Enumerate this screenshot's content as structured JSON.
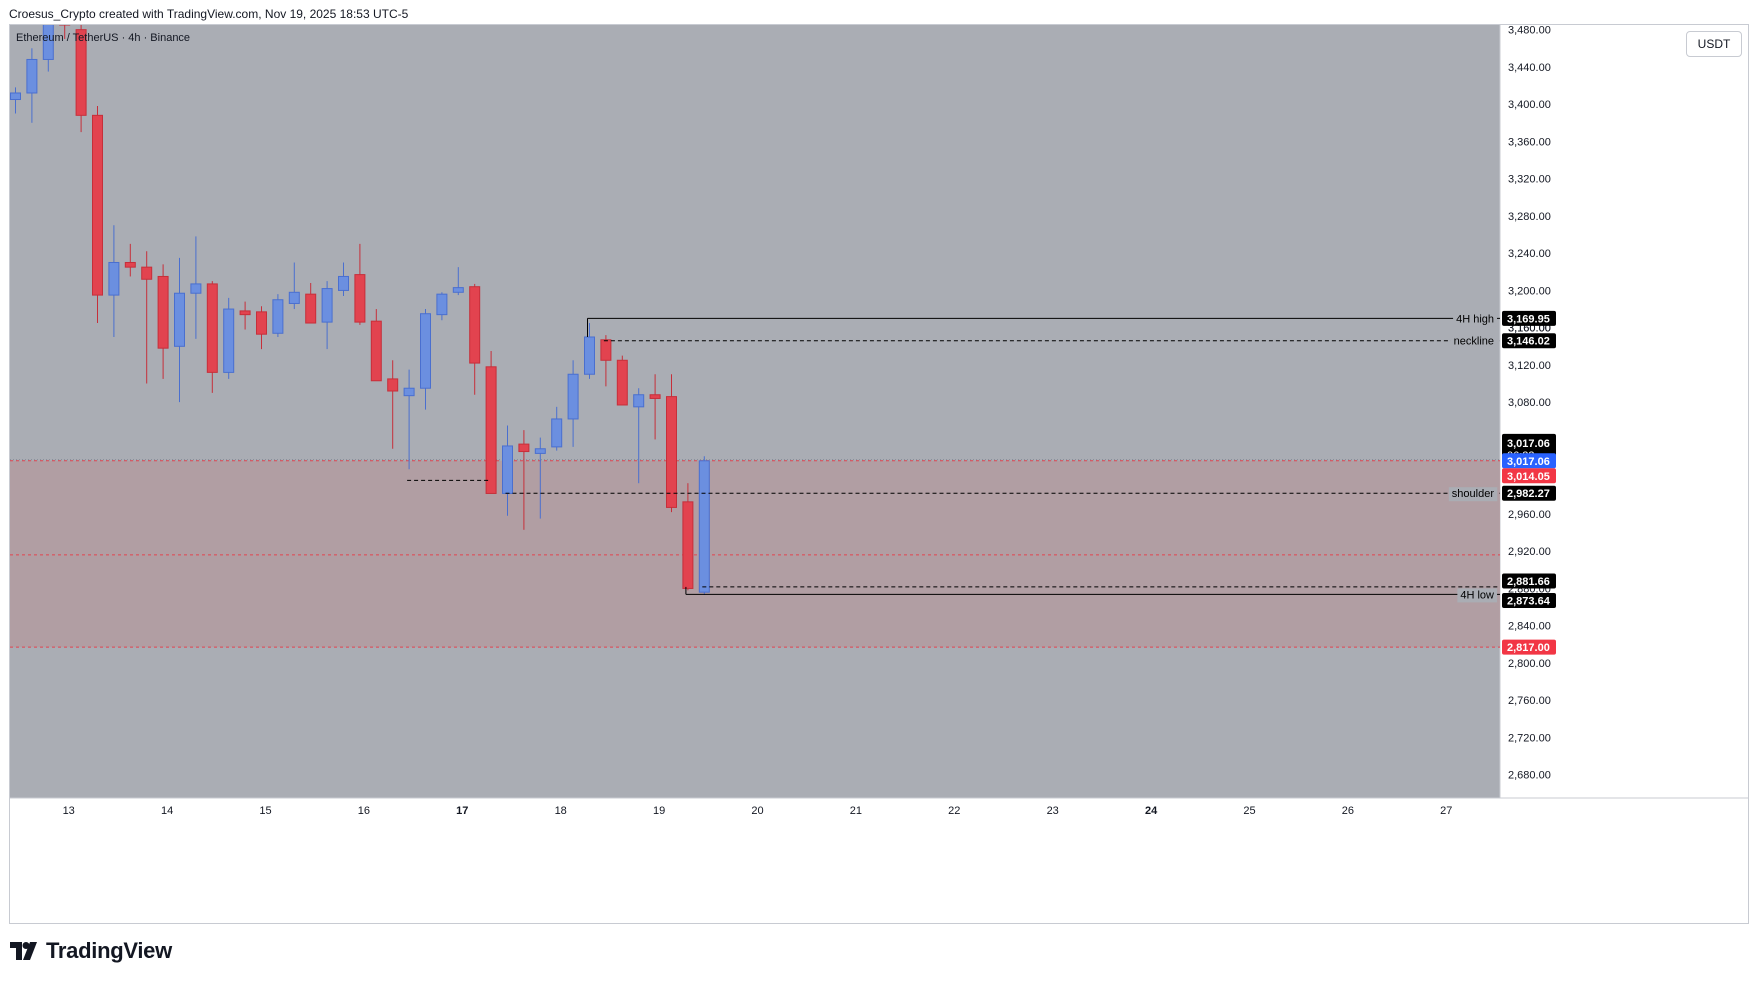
{
  "header": {
    "attribution": "Croesus_Crypto created with TradingView.com, Nov 19, 2025 18:53 UTC-5"
  },
  "symbol_legend": "Ethereum / TetherUS · 4h · Binance",
  "currency_button": "USDT",
  "brand": {
    "name": "TradingView"
  },
  "colors": {
    "background": "#ffffff",
    "plot_background": "#aaadb4",
    "zone_fill": "#b39ba0",
    "bull": "#6b8fe0",
    "bull_border": "#4a6fcf",
    "bear": "#e2434f",
    "bear_border": "#c62f3a",
    "price_blue": "#2962ff",
    "price_red": "#f23645",
    "label_black": "#000000"
  },
  "chart_data": {
    "type": "candlestick",
    "timeframe": "4h",
    "ylim": [
      2655,
      3485
    ],
    "y_ticks": [
      "2,680.00",
      "2,720.00",
      "2,760.00",
      "2,800.00",
      "2,840.00",
      "2,880.00",
      "2,920.00",
      "2,960.00",
      "3,000.00",
      "3,040.00",
      "3,080.00",
      "3,120.00",
      "3,160.00",
      "3,200.00",
      "3,240.00",
      "3,280.00",
      "3,320.00",
      "3,360.00",
      "3,400.00",
      "3,440.00"
    ],
    "x_ticks": [
      {
        "label": "13",
        "i": 3,
        "bold": false
      },
      {
        "label": "14",
        "i": 9,
        "bold": false
      },
      {
        "label": "15",
        "i": 15,
        "bold": false
      },
      {
        "label": "16",
        "i": 21,
        "bold": false
      },
      {
        "label": "17",
        "i": 27,
        "bold": true
      },
      {
        "label": "18",
        "i": 33,
        "bold": false
      },
      {
        "label": "19",
        "i": 39,
        "bold": false
      },
      {
        "label": "20",
        "i": 45,
        "bold": false
      },
      {
        "label": "21",
        "i": 51,
        "bold": false
      },
      {
        "label": "22",
        "i": 57,
        "bold": false
      },
      {
        "label": "23",
        "i": 63,
        "bold": false
      },
      {
        "label": "24",
        "i": 69,
        "bold": true
      },
      {
        "label": "25",
        "i": 75,
        "bold": false
      },
      {
        "label": "26",
        "i": 81,
        "bold": false
      },
      {
        "label": "27",
        "i": 87,
        "bold": false
      }
    ],
    "candles": [
      {
        "o": 3405,
        "h": 3418,
        "l": 3390,
        "c": 3412
      },
      {
        "o": 3412,
        "h": 3460,
        "l": 3380,
        "c": 3448
      },
      {
        "o": 3448,
        "h": 3500,
        "l": 3435,
        "c": 3490
      },
      {
        "o": 3495,
        "h": 3520,
        "l": 3470,
        "c": 3485
      },
      {
        "o": 3480,
        "h": 3490,
        "l": 3370,
        "c": 3388
      },
      {
        "o": 3388,
        "h": 3398,
        "l": 3165,
        "c": 3195
      },
      {
        "o": 3195,
        "h": 3270,
        "l": 3150,
        "c": 3230
      },
      {
        "o": 3230,
        "h": 3250,
        "l": 3215,
        "c": 3225
      },
      {
        "o": 3225,
        "h": 3242,
        "l": 3100,
        "c": 3212
      },
      {
        "o": 3215,
        "h": 3228,
        "l": 3105,
        "c": 3138
      },
      {
        "o": 3140,
        "h": 3235,
        "l": 3080,
        "c": 3197
      },
      {
        "o": 3197,
        "h": 3258,
        "l": 3148,
        "c": 3207
      },
      {
        "o": 3207,
        "h": 3210,
        "l": 3090,
        "c": 3112
      },
      {
        "o": 3112,
        "h": 3192,
        "l": 3105,
        "c": 3180
      },
      {
        "o": 3178,
        "h": 3188,
        "l": 3158,
        "c": 3174
      },
      {
        "o": 3177,
        "h": 3183,
        "l": 3137,
        "c": 3153
      },
      {
        "o": 3154,
        "h": 3196,
        "l": 3150,
        "c": 3190
      },
      {
        "o": 3186,
        "h": 3230,
        "l": 3180,
        "c": 3198
      },
      {
        "o": 3196,
        "h": 3208,
        "l": 3168,
        "c": 3165
      },
      {
        "o": 3166,
        "h": 3210,
        "l": 3137,
        "c": 3202
      },
      {
        "o": 3200,
        "h": 3230,
        "l": 3194,
        "c": 3215
      },
      {
        "o": 3217,
        "h": 3250,
        "l": 3163,
        "c": 3166
      },
      {
        "o": 3167,
        "h": 3180,
        "l": 3105,
        "c": 3103
      },
      {
        "o": 3105,
        "h": 3125,
        "l": 3030,
        "c": 3092
      },
      {
        "o": 3087,
        "h": 3115,
        "l": 3008,
        "c": 3095
      },
      {
        "o": 3095,
        "h": 3180,
        "l": 3072,
        "c": 3175
      },
      {
        "o": 3174,
        "h": 3198,
        "l": 3168,
        "c": 3196
      },
      {
        "o": 3198,
        "h": 3225,
        "l": 3195,
        "c": 3203
      },
      {
        "o": 3204,
        "h": 3207,
        "l": 3088,
        "c": 3122
      },
      {
        "o": 3118,
        "h": 3135,
        "l": 2985,
        "c": 2982
      },
      {
        "o": 2982,
        "h": 3055,
        "l": 2958,
        "c": 3033
      },
      {
        "o": 3035,
        "h": 3050,
        "l": 2943,
        "c": 3027
      },
      {
        "o": 3025,
        "h": 3042,
        "l": 2955,
        "c": 3030
      },
      {
        "o": 3032,
        "h": 3075,
        "l": 3028,
        "c": 3062
      },
      {
        "o": 3062,
        "h": 3125,
        "l": 3032,
        "c": 3110
      },
      {
        "o": 3110,
        "h": 3165,
        "l": 3105,
        "c": 3150
      },
      {
        "o": 3147,
        "h": 3152,
        "l": 3097,
        "c": 3125
      },
      {
        "o": 3125,
        "h": 3130,
        "l": 3080,
        "c": 3077
      },
      {
        "o": 3075,
        "h": 3095,
        "l": 2993,
        "c": 3088
      },
      {
        "o": 3088,
        "h": 3110,
        "l": 3040,
        "c": 3084
      },
      {
        "o": 3086,
        "h": 3110,
        "l": 2962,
        "c": 2967
      },
      {
        "o": 2973,
        "h": 2993,
        "l": 2878,
        "c": 2880
      },
      {
        "o": 2876,
        "h": 3022,
        "l": 2873,
        "c": 3017.06
      }
    ],
    "markers": [
      {
        "label": "4H high",
        "value": 3169.95,
        "price_label": "3,169.95",
        "style": "solid",
        "from_i": 35
      },
      {
        "label": "neckline",
        "value": 3146.02,
        "price_label": "3,146.02",
        "style": "dashed",
        "from_i": 36
      },
      {
        "label": "shoulder",
        "value": 2982.27,
        "price_label": "2,982.27",
        "style": "dashed",
        "from_i": 30
      },
      {
        "label": "",
        "value": 2881.66,
        "price_label": "2,881.66",
        "style": "dashed",
        "from_i": 42
      },
      {
        "label": "4H low",
        "value": 2873.64,
        "price_label": "2,873.64",
        "style": "solid",
        "from_i": 41
      },
      {
        "label": "",
        "value": 2996,
        "price_label": "",
        "style": "dashed",
        "from_i": 24,
        "to_i": 29
      }
    ],
    "zone": {
      "top": 3017.06,
      "bottom": 2817.0,
      "mid_line": 2916
    },
    "price_labels": {
      "last_price": "3,017.06",
      "countdown": "06:23",
      "blue": "3,017.06",
      "red": "3,014.05",
      "zone_bottom": "2,817.00",
      "partially_hidden": "3,160.00",
      "top_partial": "3,480.00"
    }
  }
}
